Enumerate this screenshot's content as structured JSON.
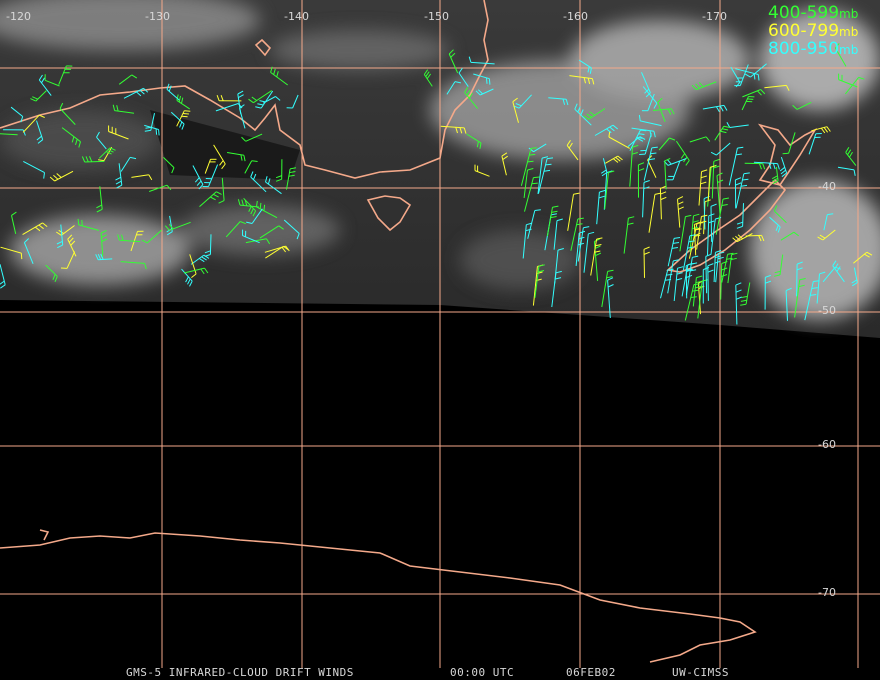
{
  "map": {
    "longitude_labels": [
      "-120",
      "-130",
      "-140",
      "-150",
      "-160",
      "-170"
    ],
    "latitude_labels": [
      "-40",
      "-50",
      "-60",
      "-70"
    ],
    "legend": [
      {
        "range": "400-599",
        "unit": "mb",
        "color": "#33ff33"
      },
      {
        "range": "600-799",
        "unit": "mb",
        "color": "#ffff33"
      },
      {
        "range": "800-950",
        "unit": "mb",
        "color": "#33ffff"
      }
    ],
    "footer": [
      "GMS-5 INFRARED-CLOUD DRIFT WINDS",
      "00:00 UTC",
      "06FEB02",
      "UW-CIMSS"
    ]
  }
}
